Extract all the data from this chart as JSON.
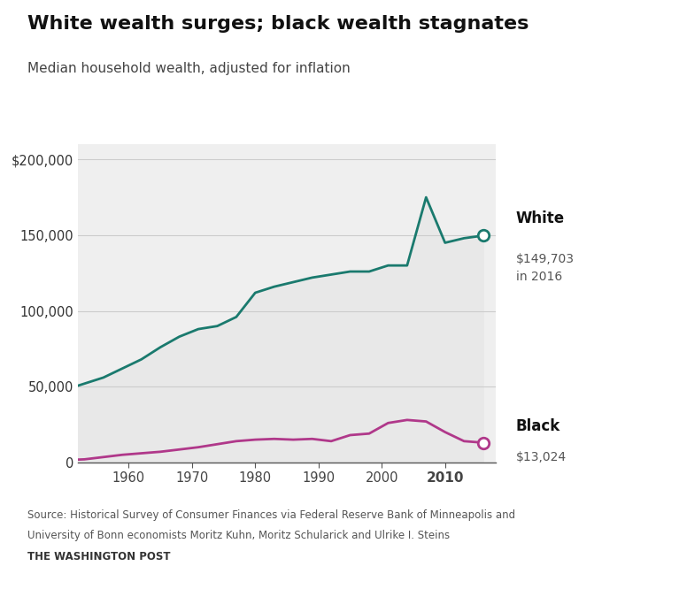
{
  "title": "White wealth surges; black wealth stagnates",
  "subtitle": "Median household wealth, adjusted for inflation",
  "source_line1": "Source: Historical Survey of Consumer Finances via Federal Reserve Bank of Minneapolis and",
  "source_line2": "University of Bonn economists Moritz Kuhn, Moritz Schularick and Ulrike I. Steins",
  "source_line3": "THE WASHINGTON POST",
  "white_x": [
    1950,
    1953,
    1956,
    1959,
    1962,
    1965,
    1968,
    1971,
    1974,
    1977,
    1980,
    1983,
    1986,
    1989,
    1992,
    1995,
    1998,
    2001,
    2004,
    2007,
    2010,
    2013,
    2016
  ],
  "white_y": [
    48000,
    52000,
    56000,
    62000,
    68000,
    76000,
    83000,
    88000,
    90000,
    96000,
    112000,
    116000,
    119000,
    122000,
    124000,
    126000,
    126000,
    130000,
    130000,
    175000,
    145000,
    148000,
    149703
  ],
  "black_x": [
    1950,
    1953,
    1956,
    1959,
    1962,
    1965,
    1968,
    1971,
    1974,
    1977,
    1980,
    1983,
    1986,
    1989,
    1992,
    1995,
    1998,
    2001,
    2004,
    2007,
    2010,
    2013,
    2016
  ],
  "black_y": [
    1500,
    2000,
    3500,
    5000,
    6000,
    7000,
    8500,
    10000,
    12000,
    14000,
    15000,
    15500,
    15000,
    15500,
    14000,
    18000,
    19000,
    26000,
    28000,
    27000,
    20000,
    14000,
    13024
  ],
  "white_color": "#1a7a6e",
  "black_color": "#b0388a",
  "fill_color": "#e8e8e8",
  "white_label": "White",
  "black_label": "Black",
  "white_end_value": "$149,703\nin 2016",
  "black_end_value": "$13,024",
  "ylim": [
    0,
    210000
  ],
  "yticks": [
    0,
    50000,
    100000,
    150000,
    200000
  ],
  "ytick_labels": [
    "0",
    "50,000",
    "100,000",
    "150,000",
    "$200,000"
  ],
  "xticks": [
    1960,
    1970,
    1980,
    1990,
    2000,
    2010
  ],
  "xtick_labels": [
    "1960",
    "1970",
    "1980",
    "1990",
    "2000",
    "2010"
  ],
  "bold_xtick": "2010",
  "xlim_left": 1952,
  "xlim_right": 2018,
  "background_color": "#efefef",
  "fig_background": "#ffffff"
}
